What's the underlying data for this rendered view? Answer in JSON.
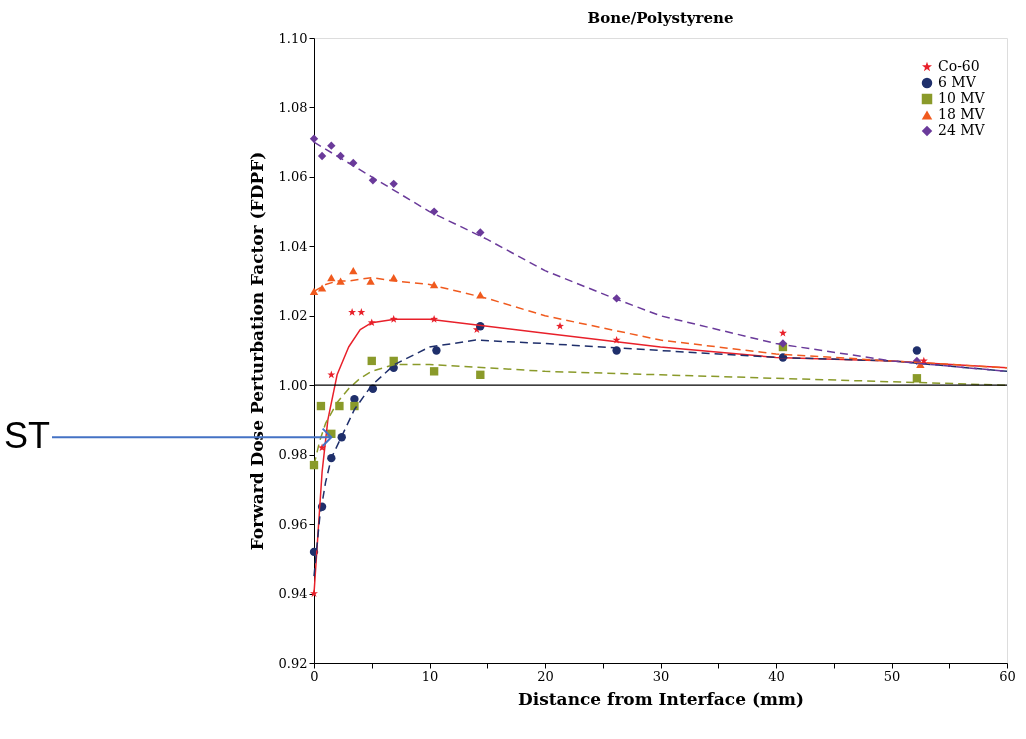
{
  "chart_data": {
    "type": "scatter",
    "title": "Bone/Polystyrene",
    "xlabel": "Distance from Interface (mm)",
    "ylabel": "Forward Dose Perturbation Factor (FDPF)",
    "xlim": [
      0,
      60
    ],
    "xticks": [
      0,
      {
        "value": 5,
        "label": null
      },
      10,
      {
        "value": 15,
        "label": null
      },
      20,
      {
        "value": 25,
        "label": null
      },
      30,
      {
        "value": 35,
        "label": null
      },
      40,
      {
        "value": 45,
        "label": null
      },
      50,
      {
        "value": 55,
        "label": null
      },
      60
    ],
    "ylim": [
      0.92,
      1.1
    ],
    "yticks": [
      0.92,
      0.94,
      0.96,
      0.98,
      {
        "value": 1.0,
        "label": "1.00"
      },
      1.02,
      1.04,
      1.06,
      1.08,
      {
        "value": 1.1,
        "label": "1.10"
      }
    ],
    "grid": false,
    "legend": "top right",
    "ref_lines": [
      {
        "axis": "y",
        "value": 1.0,
        "color": "#000000",
        "line_style": "solid"
      }
    ],
    "annotations": [
      {
        "text": "ST",
        "x": 1.5,
        "y": 0.985
      }
    ],
    "series": [
      {
        "name": "Co-60",
        "type": "scatter",
        "color": "#e8202a",
        "marker": "star",
        "x": [
          0,
          0.7,
          1.5,
          3.3,
          4.1,
          5.0,
          6.9,
          10.4,
          14.1,
          21.3,
          26.2,
          40.6,
          52.8
        ],
        "values": [
          0.94,
          0.982,
          1.003,
          1.021,
          1.021,
          1.018,
          1.019,
          1.019,
          1.016,
          1.017,
          1.013,
          1.015,
          1.007
        ]
      },
      {
        "name": "6 MV",
        "type": "scatter",
        "color": "#1f2f6b",
        "marker": "circle",
        "x": [
          0,
          0.7,
          1.5,
          2.4,
          3.5,
          5.1,
          6.9,
          10.6,
          14.4,
          26.2,
          40.6,
          52.2
        ],
        "values": [
          0.952,
          0.965,
          0.979,
          0.985,
          0.996,
          0.999,
          1.005,
          1.01,
          1.017,
          1.01,
          1.008,
          1.01
        ]
      },
      {
        "name": "10 MV",
        "type": "scatter",
        "color": "#8a9a2a",
        "marker": "square",
        "x": [
          0,
          0.6,
          1.5,
          2.2,
          3.5,
          5.0,
          6.9,
          10.4,
          14.4,
          40.6,
          52.2
        ],
        "values": [
          0.977,
          0.994,
          0.986,
          0.994,
          0.994,
          1.007,
          1.007,
          1.004,
          1.003,
          1.011,
          1.002
        ]
      },
      {
        "name": "18 MV",
        "type": "scatter",
        "color": "#f05a1e",
        "marker": "triangle",
        "x": [
          0,
          0.7,
          1.5,
          2.3,
          3.4,
          4.9,
          6.9,
          10.4,
          14.4,
          52.5
        ],
        "values": [
          1.027,
          1.028,
          1.031,
          1.03,
          1.033,
          1.03,
          1.031,
          1.029,
          1.026,
          1.006
        ]
      },
      {
        "name": "24 MV",
        "type": "scatter",
        "color": "#6a3a9a",
        "marker": "diamond",
        "x": [
          0,
          0.7,
          1.5,
          2.3,
          3.4,
          5.1,
          6.9,
          10.4,
          14.4,
          26.2,
          40.6,
          52.2
        ],
        "values": [
          1.071,
          1.066,
          1.069,
          1.066,
          1.064,
          1.059,
          1.058,
          1.05,
          1.044,
          1.025,
          1.012,
          1.007
        ]
      },
      {
        "type": "line",
        "color": "#e8202a",
        "line_style": "solid",
        "x": [
          0,
          0.3,
          0.7,
          1.2,
          2,
          3,
          4,
          5,
          7,
          10,
          15,
          20,
          30,
          40,
          50,
          60
        ],
        "values": [
          0.94,
          0.955,
          0.975,
          0.99,
          1.003,
          1.011,
          1.016,
          1.018,
          1.019,
          1.019,
          1.017,
          1.015,
          1.011,
          1.008,
          1.007,
          1.005
        ]
      },
      {
        "type": "line",
        "color": "#1f2f6b",
        "line_style": "dashed",
        "x": [
          0,
          0.5,
          1,
          1.5,
          2.5,
          3.5,
          5,
          7,
          10,
          14,
          20,
          30,
          40,
          50,
          60
        ],
        "values": [
          0.945,
          0.962,
          0.972,
          0.979,
          0.986,
          0.993,
          1.0,
          1.006,
          1.011,
          1.013,
          1.012,
          1.01,
          1.008,
          1.007,
          1.004
        ]
      },
      {
        "type": "line",
        "color": "#8a9a2a",
        "line_style": "dashed",
        "x": [
          0,
          0.5,
          1,
          2,
          3,
          4,
          5,
          7,
          10,
          15,
          20,
          30,
          40,
          50,
          60
        ],
        "values": [
          0.977,
          0.984,
          0.989,
          0.995,
          0.999,
          1.002,
          1.004,
          1.006,
          1.006,
          1.005,
          1.004,
          1.003,
          1.002,
          1.001,
          1.0
        ]
      },
      {
        "type": "line",
        "color": "#f05a1e",
        "line_style": "dashed",
        "x": [
          0,
          1,
          2,
          3,
          5,
          7,
          10,
          15,
          20,
          30,
          40,
          50,
          60
        ],
        "values": [
          1.027,
          1.029,
          1.03,
          1.03,
          1.031,
          1.03,
          1.029,
          1.025,
          1.02,
          1.013,
          1.009,
          1.007,
          1.005
        ]
      },
      {
        "type": "line",
        "color": "#6a3a9a",
        "line_style": "dashed",
        "x": [
          0,
          2,
          5,
          10,
          15,
          20,
          26,
          30,
          40,
          50,
          60
        ],
        "values": [
          1.07,
          1.066,
          1.06,
          1.05,
          1.042,
          1.033,
          1.025,
          1.02,
          1.012,
          1.007,
          1.004
        ]
      }
    ]
  }
}
